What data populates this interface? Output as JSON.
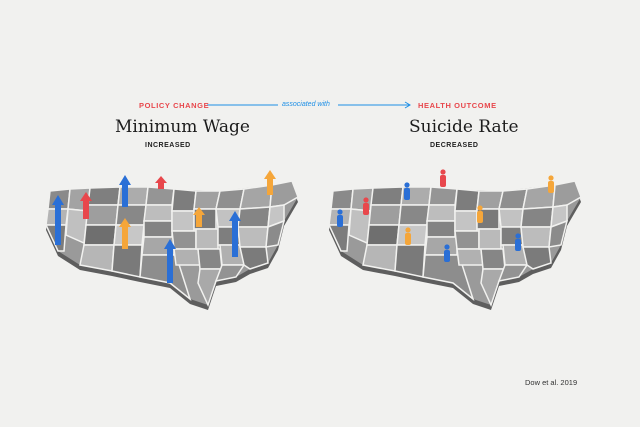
{
  "header": {
    "policy_label": "POLICY CHANGE",
    "associated_label": "associated with",
    "health_label": "HEALTH OUTCOME"
  },
  "left_panel": {
    "title": "Minimum Wage",
    "subtitle": "INCREASED"
  },
  "right_panel": {
    "title": "Suicide Rate",
    "subtitle": "DECREASED"
  },
  "citation": "Dow et al. 2019",
  "colors": {
    "accent_red": "#e8474c",
    "accent_blue": "#1d8fe6",
    "bar_blue": "#2a6fd6",
    "bar_red": "#e8474c",
    "bar_orange": "#f5a63a",
    "map_gray": "#8d8d8d"
  },
  "icons": {
    "left_markers": "arrow-bar-icon",
    "right_markers": "person-figure-icon"
  }
}
